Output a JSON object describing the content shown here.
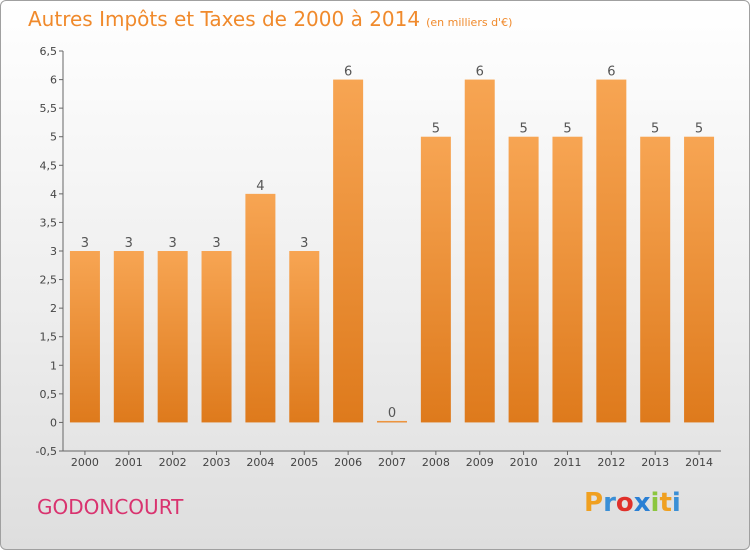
{
  "header": {
    "title": "Autres Impôts et Taxes de 2000 à 2014",
    "unit": "(en milliers d'€)"
  },
  "commune": "GODONCOURT",
  "logo": {
    "letters": [
      "P",
      "r",
      "o",
      "x",
      "i",
      "t",
      "i"
    ],
    "colors": [
      "#f0a020",
      "#3a8fd6",
      "#e0302a",
      "#2a7fd4",
      "#8cc63e",
      "#f0a020",
      "#3a8fd6"
    ]
  },
  "colors": {
    "bar_top": "#f7a553",
    "bar_bottom": "#de7a1c",
    "title": "#f08a2c",
    "commune": "#d9336f"
  },
  "chart_data": {
    "type": "bar",
    "title": "Autres Impôts et Taxes de 2000 à 2014",
    "subtitle": "(en milliers d'€)",
    "categories": [
      "2000",
      "2001",
      "2002",
      "2003",
      "2004",
      "2005",
      "2006",
      "2007",
      "2008",
      "2009",
      "2010",
      "2011",
      "2012",
      "2013",
      "2014"
    ],
    "values": [
      3,
      3,
      3,
      3,
      4,
      3,
      6,
      0,
      5,
      6,
      5,
      5,
      6,
      5,
      5
    ],
    "ylim": [
      -0.5,
      6.5
    ],
    "yticks": [
      "-0,5",
      "0",
      "0,5",
      "1",
      "1,5",
      "2",
      "2,5",
      "3",
      "3,5",
      "4",
      "4,5",
      "5",
      "5,5",
      "6",
      "6,5"
    ],
    "grid": false
  }
}
